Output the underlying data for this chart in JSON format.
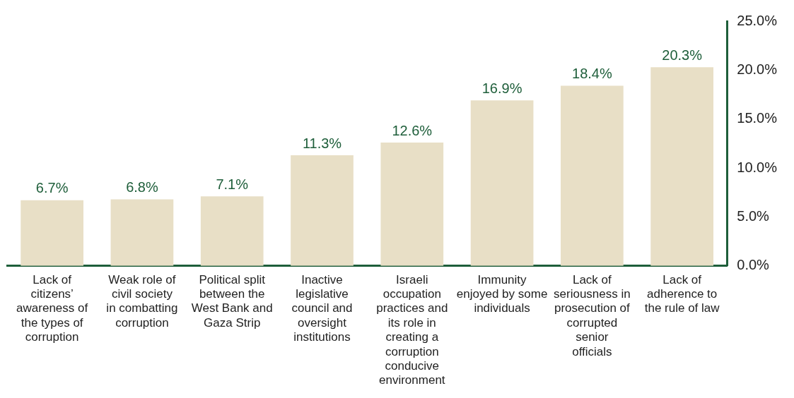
{
  "chart_data": {
    "type": "bar",
    "categories": [
      "Lack of citizens’ awareness of the types of corruption",
      "Weak role of civil society in combatting corruption",
      "Political split between the West Bank and Gaza Strip",
      "Inactive legislative council and oversight institutions",
      "Israeli occupation practices and its role in creating a corruption conducive environment",
      "Immunity enjoyed by some individuals",
      "Lack of seriousness in prosecution of corrupted senior officials",
      "Lack of adherence to the rule of law"
    ],
    "values": [
      6.7,
      6.8,
      7.1,
      11.3,
      12.6,
      16.9,
      18.4,
      20.3
    ],
    "value_labels": [
      "6.7%",
      "6.8%",
      "7.1%",
      "11.3%",
      "12.6%",
      "16.9%",
      "18.4%",
      "20.3%"
    ],
    "color": "#e8dfc6",
    "ylim": [
      0,
      25
    ],
    "yticks": [
      {
        "value": 0,
        "label": "0.0%"
      },
      {
        "value": 5,
        "label": "5.0%"
      },
      {
        "value": 10,
        "label": "10.0%"
      },
      {
        "value": 15,
        "label": "15.0%"
      },
      {
        "value": 20,
        "label": "20.0%"
      },
      {
        "value": 25,
        "label": "25.0%"
      }
    ],
    "grid": false,
    "legend": false
  }
}
